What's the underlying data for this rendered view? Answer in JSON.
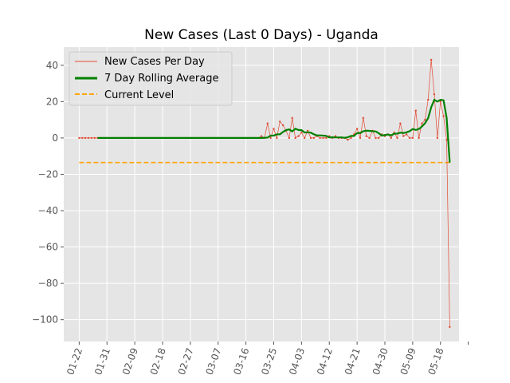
{
  "chart_data": {
    "type": "line",
    "title": "New Cases (Last 0 Days) - Uganda",
    "xlabel": "",
    "ylabel": "",
    "x_start": "2020-01-22",
    "x_end": "2020-05-20",
    "xlim": [
      "2020-01-17",
      "2020-05-24"
    ],
    "ylim": [
      -112,
      50
    ],
    "grid": true,
    "legend_position": "top-left",
    "x_ticks": [
      {
        "date": "2020-01-22",
        "label": "01-22"
      },
      {
        "date": "2020-01-31",
        "label": "01-31"
      },
      {
        "date": "2020-02-09",
        "label": "02-09"
      },
      {
        "date": "2020-02-18",
        "label": "02-18"
      },
      {
        "date": "2020-02-27",
        "label": "02-27"
      },
      {
        "date": "2020-03-07",
        "label": "03-07"
      },
      {
        "date": "2020-03-16",
        "label": "03-16"
      },
      {
        "date": "2020-03-25",
        "label": "03-25"
      },
      {
        "date": "2020-04-03",
        "label": "04-03"
      },
      {
        "date": "2020-04-12",
        "label": "04-12"
      },
      {
        "date": "2020-04-21",
        "label": "04-21"
      },
      {
        "date": "2020-04-30",
        "label": "04-30"
      },
      {
        "date": "2020-05-09",
        "label": "05-09"
      },
      {
        "date": "2020-05-18",
        "label": "05-18"
      },
      {
        "date": "2020-05-27",
        "label": ""
      }
    ],
    "y_ticks": [
      {
        "value": 40,
        "label": "40"
      },
      {
        "value": 20,
        "label": "20"
      },
      {
        "value": 0,
        "label": "0"
      },
      {
        "value": -20,
        "label": "−20"
      },
      {
        "value": -40,
        "label": "−40"
      },
      {
        "value": -60,
        "label": "−60"
      },
      {
        "value": -80,
        "label": "−80"
      },
      {
        "value": -100,
        "label": "−100"
      }
    ],
    "series": [
      {
        "name": "New Cases Per Day",
        "color": "#e24a33",
        "values": [
          0,
          0,
          0,
          0,
          0,
          0,
          0,
          0,
          0,
          0,
          0,
          0,
          0,
          0,
          0,
          0,
          0,
          0,
          0,
          0,
          0,
          0,
          0,
          0,
          0,
          0,
          0,
          0,
          0,
          0,
          0,
          0,
          0,
          0,
          0,
          0,
          0,
          0,
          0,
          0,
          0,
          0,
          0,
          0,
          0,
          0,
          0,
          0,
          0,
          0,
          0,
          0,
          0,
          0,
          0,
          0,
          0,
          0,
          0,
          1,
          0,
          8,
          0,
          5,
          0,
          9,
          7,
          4,
          0,
          11,
          0,
          1,
          3,
          0,
          4,
          0,
          0,
          1,
          0,
          0,
          0,
          1,
          0,
          1,
          0,
          0,
          0,
          -1,
          0,
          2,
          5,
          0,
          11,
          1,
          0,
          4,
          0,
          0,
          2,
          1,
          2,
          0,
          3,
          0,
          8,
          1,
          2,
          0,
          0,
          15,
          0,
          8,
          10,
          21,
          43,
          24,
          0,
          20,
          12,
          -1,
          -104
        ]
      },
      {
        "name": "7 Day Rolling Average",
        "color": "#008000",
        "start_index": 6,
        "values": [
          0,
          0,
          0,
          0,
          0,
          0,
          0,
          0,
          0,
          0,
          0,
          0,
          0,
          0,
          0,
          0,
          0,
          0,
          0,
          0,
          0,
          0,
          0,
          0,
          0,
          0,
          0,
          0,
          0,
          0,
          0,
          0,
          0,
          0,
          0,
          0,
          0,
          0,
          0,
          0,
          0,
          0,
          0,
          0,
          0,
          0,
          0,
          0,
          0,
          0,
          0,
          0,
          0,
          0,
          0.1,
          0.2,
          1.3,
          1.3,
          2.0,
          2.0,
          3.3,
          4.3,
          4.7,
          3.6,
          5.1,
          4.4,
          4.3,
          3.0,
          3.1,
          2.9,
          2.0,
          1.4,
          1.4,
          1.3,
          1.1,
          0.3,
          0.4,
          0.3,
          0.3,
          0.3,
          0.1,
          0.4,
          1.1,
          1.1,
          2.7,
          2.7,
          3.7,
          4.0,
          3.9,
          3.7,
          3.6,
          2.6,
          1.3,
          1.6,
          1.9,
          1.4,
          2.3,
          2.4,
          2.9,
          2.7,
          3.1,
          3.7,
          4.9,
          4.4,
          4.9,
          6.3,
          8.1,
          10.9,
          16.9,
          21.0,
          20.0,
          21.0,
          20.7,
          11.0,
          -13.5
        ]
      },
      {
        "name": "Current Level",
        "color": "#ffa500",
        "value": -13.5
      }
    ]
  }
}
